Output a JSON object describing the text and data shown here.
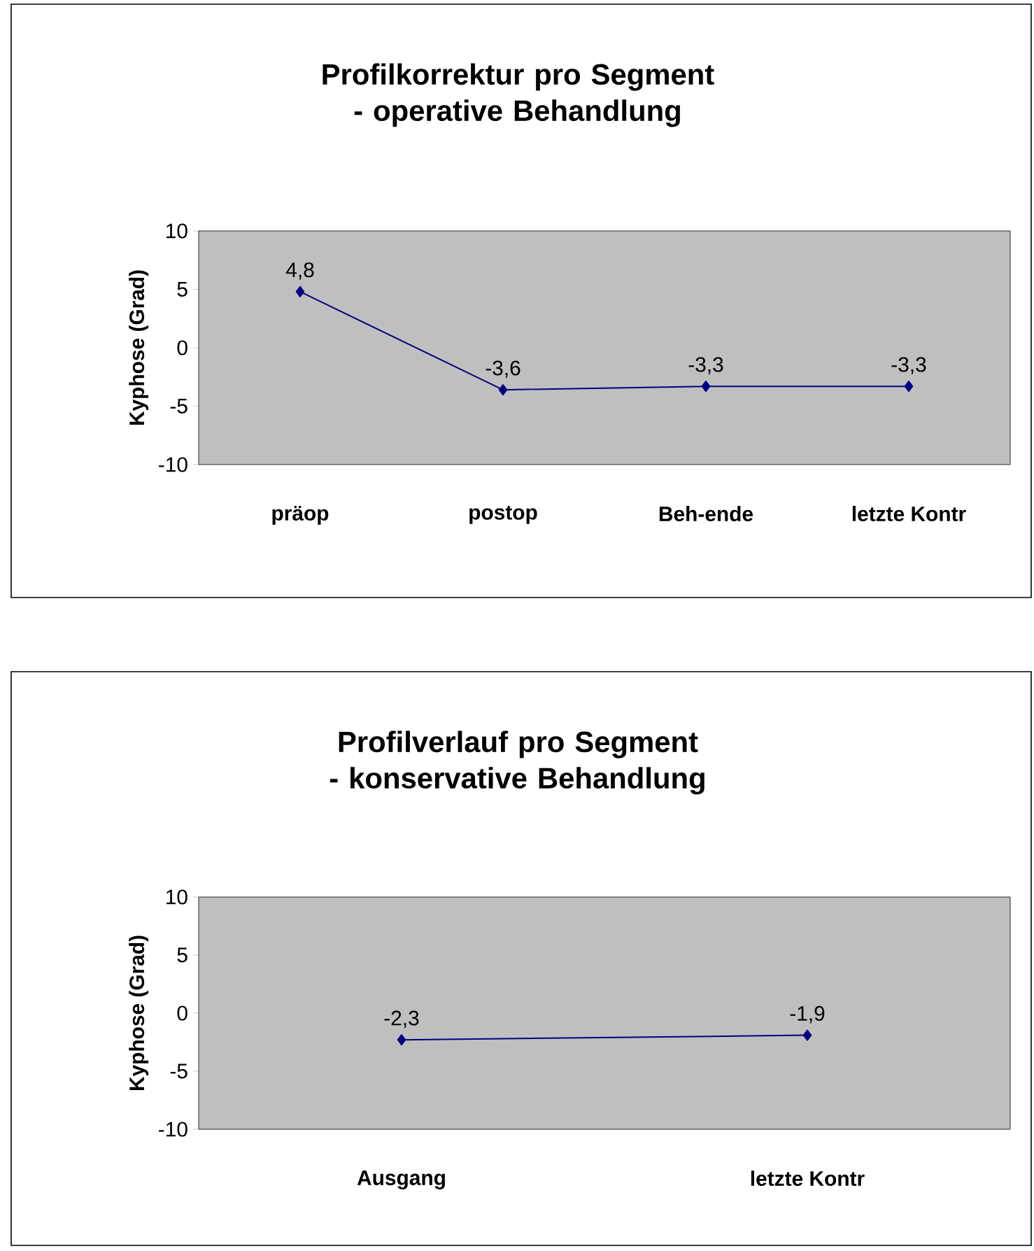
{
  "chart_data": [
    {
      "type": "line",
      "title": "Profilkorrektur pro Segment - operative Behandlung",
      "ylabel": "Kyphose (Grad)",
      "categories": [
        "präop",
        "postop",
        "Beh-ende",
        "letzte Kontr"
      ],
      "values": [
        4.8,
        -3.6,
        -3.3,
        -3.3
      ],
      "value_labels": [
        "4,8",
        "-3,6",
        "-3,3",
        "-3,3"
      ],
      "color": "#000080",
      "marker": "diamond",
      "ylim": [
        -10,
        10
      ],
      "yticks": [
        -10,
        -5,
        0,
        5,
        10
      ]
    },
    {
      "type": "line",
      "title": "Profilverlauf pro Segment - konservative Behandlung",
      "ylabel": "Kyphose (Grad)",
      "categories": [
        "Ausgang",
        "letzte Kontr"
      ],
      "values": [
        -2.3,
        -1.9
      ],
      "value_labels": [
        "-2,3",
        "-1,9"
      ],
      "color": "#000080",
      "marker": "diamond",
      "ylim": [
        -10,
        10
      ],
      "yticks": [
        -10,
        -5,
        0,
        5,
        10
      ]
    }
  ]
}
